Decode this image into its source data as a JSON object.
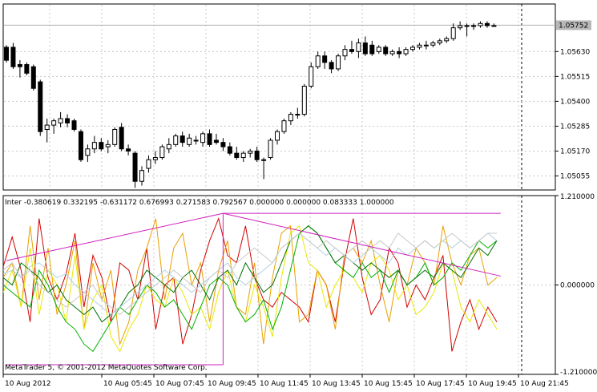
{
  "chart_data": [
    {
      "type": "candlestick",
      "price_ylim": [
        1.0499,
        1.0585
      ],
      "y_ticks": [
        "1.05630",
        "1.05515",
        "1.05400",
        "1.05285",
        "1.05170",
        "1.05055"
      ],
      "current_price_label": "1.05752",
      "colors": {
        "bull": "#ffffff",
        "bear": "#000000",
        "outline": "#000000",
        "grid": "#c0c0c0",
        "price_line": "#c0c0c0"
      },
      "candles": [
        {
          "o": 1.0565,
          "h": 1.0566,
          "l": 1.0558,
          "c": 1.0559
        },
        {
          "o": 1.0565,
          "h": 1.0567,
          "l": 1.0555,
          "c": 1.0556
        },
        {
          "o": 1.0557,
          "h": 1.0559,
          "l": 1.0551,
          "c": 1.0556
        },
        {
          "o": 1.0557,
          "h": 1.0558,
          "l": 1.0552,
          "c": 1.0553
        },
        {
          "o": 1.0556,
          "h": 1.0557,
          "l": 1.0545,
          "c": 1.0546
        },
        {
          "o": 1.0549,
          "h": 1.055,
          "l": 1.0524,
          "c": 1.0526
        },
        {
          "o": 1.0527,
          "h": 1.0532,
          "l": 1.0521,
          "c": 1.0529
        },
        {
          "o": 1.0529,
          "h": 1.0532,
          "l": 1.0525,
          "c": 1.0531
        },
        {
          "o": 1.053,
          "h": 1.0535,
          "l": 1.0528,
          "c": 1.0532
        },
        {
          "o": 1.0532,
          "h": 1.0534,
          "l": 1.0528,
          "c": 1.053
        },
        {
          "o": 1.0531,
          "h": 1.0532,
          "l": 1.0526,
          "c": 1.0527
        },
        {
          "o": 1.0526,
          "h": 1.0527,
          "l": 1.0512,
          "c": 1.0513
        },
        {
          "o": 1.0515,
          "h": 1.052,
          "l": 1.0512,
          "c": 1.0518
        },
        {
          "o": 1.0518,
          "h": 1.0524,
          "l": 1.0516,
          "c": 1.0521
        },
        {
          "o": 1.0521,
          "h": 1.0523,
          "l": 1.0517,
          "c": 1.0518
        },
        {
          "o": 1.0519,
          "h": 1.0522,
          "l": 1.0516,
          "c": 1.052
        },
        {
          "o": 1.052,
          "h": 1.0528,
          "l": 1.0519,
          "c": 1.0527
        },
        {
          "o": 1.0528,
          "h": 1.053,
          "l": 1.0517,
          "c": 1.0518
        },
        {
          "o": 1.0518,
          "h": 1.052,
          "l": 1.0515,
          "c": 1.0517
        },
        {
          "o": 1.0516,
          "h": 1.0517,
          "l": 1.05,
          "c": 1.0503
        },
        {
          "o": 1.0503,
          "h": 1.051,
          "l": 1.0501,
          "c": 1.0508
        },
        {
          "o": 1.0509,
          "h": 1.0515,
          "l": 1.0507,
          "c": 1.0513
        },
        {
          "o": 1.0513,
          "h": 1.0517,
          "l": 1.0511,
          "c": 1.0514
        },
        {
          "o": 1.0514,
          "h": 1.052,
          "l": 1.0513,
          "c": 1.0519
        },
        {
          "o": 1.0518,
          "h": 1.0523,
          "l": 1.0516,
          "c": 1.052
        },
        {
          "o": 1.052,
          "h": 1.0525,
          "l": 1.0519,
          "c": 1.0524
        },
        {
          "o": 1.0524,
          "h": 1.0526,
          "l": 1.0519,
          "c": 1.0521
        },
        {
          "o": 1.052,
          "h": 1.0525,
          "l": 1.0519,
          "c": 1.0523
        },
        {
          "o": 1.0522,
          "h": 1.0524,
          "l": 1.052,
          "c": 1.0522
        },
        {
          "o": 1.0521,
          "h": 1.0526,
          "l": 1.0519,
          "c": 1.0525
        },
        {
          "o": 1.0525,
          "h": 1.0527,
          "l": 1.0519,
          "c": 1.052
        },
        {
          "o": 1.0522,
          "h": 1.0525,
          "l": 1.052,
          "c": 1.0521
        },
        {
          "o": 1.0521,
          "h": 1.0523,
          "l": 1.0517,
          "c": 1.0519
        },
        {
          "o": 1.0519,
          "h": 1.0521,
          "l": 1.0515,
          "c": 1.0516
        },
        {
          "o": 1.0516,
          "h": 1.0519,
          "l": 1.0513,
          "c": 1.0514
        },
        {
          "o": 1.0514,
          "h": 1.0517,
          "l": 1.0512,
          "c": 1.0516
        },
        {
          "o": 1.0516,
          "h": 1.0518,
          "l": 1.0514,
          "c": 1.0517
        },
        {
          "o": 1.0517,
          "h": 1.0519,
          "l": 1.0512,
          "c": 1.0513
        },
        {
          "o": 1.0513,
          "h": 1.0514,
          "l": 1.0504,
          "c": 1.0513
        },
        {
          "o": 1.0514,
          "h": 1.0523,
          "l": 1.0513,
          "c": 1.0522
        },
        {
          "o": 1.0522,
          "h": 1.0527,
          "l": 1.052,
          "c": 1.0526
        },
        {
          "o": 1.0526,
          "h": 1.0532,
          "l": 1.0525,
          "c": 1.0531
        },
        {
          "o": 1.0531,
          "h": 1.0535,
          "l": 1.0529,
          "c": 1.0534
        },
        {
          "o": 1.0534,
          "h": 1.0537,
          "l": 1.0532,
          "c": 1.0534
        },
        {
          "o": 1.0534,
          "h": 1.0548,
          "l": 1.0533,
          "c": 1.0547
        },
        {
          "o": 1.0547,
          "h": 1.0558,
          "l": 1.0546,
          "c": 1.0556
        },
        {
          "o": 1.0556,
          "h": 1.0563,
          "l": 1.0555,
          "c": 1.0561
        },
        {
          "o": 1.0561,
          "h": 1.0563,
          "l": 1.0555,
          "c": 1.0558
        },
        {
          "o": 1.0558,
          "h": 1.0559,
          "l": 1.0553,
          "c": 1.0555
        },
        {
          "o": 1.0555,
          "h": 1.0562,
          "l": 1.0554,
          "c": 1.0561
        },
        {
          "o": 1.0561,
          "h": 1.0566,
          "l": 1.0559,
          "c": 1.0564
        },
        {
          "o": 1.0564,
          "h": 1.0568,
          "l": 1.0562,
          "c": 1.0563
        },
        {
          "o": 1.0563,
          "h": 1.0569,
          "l": 1.056,
          "c": 1.0567
        },
        {
          "o": 1.0567,
          "h": 1.057,
          "l": 1.0561,
          "c": 1.0562
        },
        {
          "o": 1.0566,
          "h": 1.0568,
          "l": 1.0561,
          "c": 1.0562
        },
        {
          "o": 1.0563,
          "h": 1.0566,
          "l": 1.0562,
          "c": 1.0565
        },
        {
          "o": 1.0565,
          "h": 1.0566,
          "l": 1.0561,
          "c": 1.0562
        },
        {
          "o": 1.0562,
          "h": 1.0564,
          "l": 1.0561,
          "c": 1.0563
        },
        {
          "o": 1.0563,
          "h": 1.0565,
          "l": 1.056,
          "c": 1.0562
        },
        {
          "o": 1.0562,
          "h": 1.0565,
          "l": 1.0561,
          "c": 1.0564
        },
        {
          "o": 1.0564,
          "h": 1.0566,
          "l": 1.0563,
          "c": 1.0565
        },
        {
          "o": 1.0565,
          "h": 1.0567,
          "l": 1.0564,
          "c": 1.0566
        },
        {
          "o": 1.0566,
          "h": 1.0568,
          "l": 1.0564,
          "c": 1.0566
        },
        {
          "o": 1.0566,
          "h": 1.0568,
          "l": 1.0565,
          "c": 1.0567
        },
        {
          "o": 1.0567,
          "h": 1.0569,
          "l": 1.0566,
          "c": 1.0568
        },
        {
          "o": 1.0568,
          "h": 1.057,
          "l": 1.0567,
          "c": 1.0569
        },
        {
          "o": 1.0569,
          "h": 1.0576,
          "l": 1.0568,
          "c": 1.0574
        },
        {
          "o": 1.0574,
          "h": 1.0577,
          "l": 1.0573,
          "c": 1.0575
        },
        {
          "o": 1.0575,
          "h": 1.0576,
          "l": 1.057,
          "c": 1.0575
        },
        {
          "o": 1.0575,
          "h": 1.0576,
          "l": 1.0573,
          "c": 1.0575
        },
        {
          "o": 1.0575,
          "h": 1.0577,
          "l": 1.0574,
          "c": 1.0576
        },
        {
          "o": 1.0576,
          "h": 1.0577,
          "l": 1.0574,
          "c": 1.0575
        },
        {
          "o": 1.0575,
          "h": 1.0576,
          "l": 1.0575,
          "c": 1.0575
        }
      ]
    },
    {
      "type": "line",
      "indicator_label": "Inter -0.380619 0.332195 -0.631172 0.676993 0.271583 0.792567 0.000000 0.000000 0.083333 1.000000",
      "ylim": [
        -1.21,
        1.21
      ],
      "y_ticks": [
        "1.210000",
        "0.000000",
        "-1.210000"
      ],
      "series": [
        {
          "color": "#d40000",
          "values": [
            0.25,
            0.65,
            0.2,
            -0.5,
            0.9,
            0.1,
            -0.2,
            0.15,
            0.7,
            -0.3,
            0.4,
            0.1,
            -0.5,
            0.3,
            0.2,
            -0.2,
            0.5,
            -0.6,
            0.0,
            0.1,
            -0.8,
            -0.4,
            0.2,
            0.6,
            0.9,
            0.4,
            0.3,
            0.8,
            0.1,
            -0.2,
            -0.3,
            -0.1,
            -0.2,
            -0.3,
            -0.5,
            0.2,
            0.0,
            -0.5,
            0.3,
            0.9,
            0.1,
            -0.4,
            -0.2,
            0.5,
            0.3,
            -0.3,
            0.0,
            -0.2,
            0.1,
            0.4,
            -0.9,
            -0.5,
            -0.2,
            -0.6,
            -0.3,
            -0.5
          ]
        },
        {
          "color": "#e8a000",
          "values": [
            0.1,
            0.3,
            -0.3,
            0.8,
            -0.2,
            0.5,
            -0.4,
            0.0,
            0.6,
            -0.6,
            0.3,
            -0.2,
            0.2,
            -0.8,
            -0.5,
            0.2,
            0.5,
            0.9,
            -0.2,
            0.5,
            0.7,
            0.0,
            0.3,
            -0.5,
            0.2,
            0.6,
            -0.3,
            -0.4,
            0.3,
            -0.8,
            0.1,
            0.7,
            0.8,
            -0.5,
            -0.4,
            0.2,
            0.0,
            -0.6,
            0.4,
            0.5,
            0.3,
            0.6,
            0.0,
            -0.5,
            0.2,
            0.0,
            0.5,
            0.3,
            0.0,
            0.8,
            0.3,
            0.0,
            0.4,
            0.5,
            0.0,
            0.1
          ]
        },
        {
          "color": "#e8e800",
          "values": [
            -0.1,
            0.2,
            -0.3,
            0.5,
            -0.4,
            0.2,
            0.0,
            -0.5,
            0.4,
            -0.6,
            -0.2,
            0.0,
            -0.7,
            -0.9,
            -0.6,
            -0.4,
            0.0,
            -0.2,
            -0.3,
            0.1,
            -0.1,
            -0.4,
            -0.3,
            -0.6,
            -0.1,
            0.2,
            -0.3,
            -0.5,
            0.0,
            -0.3,
            -0.7,
            0.1,
            0.7,
            0.8,
            0.3,
            0.2,
            -0.3,
            0.0,
            0.2,
            0.1,
            -0.1,
            0.3,
            0.4,
            0.2,
            -0.2,
            0.0,
            -0.4,
            -0.3,
            -0.1,
            0.3,
            0.2,
            -0.3,
            -0.5,
            -0.2,
            -0.4,
            -0.6
          ]
        },
        {
          "color": "#00b000",
          "values": [
            0.0,
            -0.1,
            -0.2,
            -0.3,
            0.2,
            0.0,
            -0.3,
            -0.5,
            -0.6,
            -0.8,
            -0.9,
            -0.7,
            -0.5,
            -0.3,
            -0.4,
            -0.2,
            0.0,
            -0.1,
            -0.3,
            -0.2,
            -0.4,
            -0.6,
            -0.3,
            0.0,
            0.1,
            0.0,
            -0.3,
            -0.5,
            -0.4,
            -0.2,
            -0.6,
            -0.3,
            0.2,
            0.7,
            0.8,
            0.7,
            0.5,
            0.3,
            0.2,
            0.1,
            0.3,
            0.1,
            0.2,
            -0.1,
            0.2,
            0.0,
            0.1,
            0.3,
            0.0,
            0.1,
            0.3,
            0.2,
            0.4,
            0.6,
            0.5,
            0.6
          ]
        },
        {
          "color": "#007000",
          "values": [
            0.1,
            0.0,
            0.3,
            0.2,
            0.1,
            -0.1,
            0.0,
            -0.2,
            -0.3,
            -0.4,
            -0.3,
            -0.5,
            -0.4,
            -0.3,
            -0.1,
            0.0,
            0.2,
            0.1,
            0.0,
            -0.1,
            0.1,
            0.2,
            0.0,
            -0.2,
            0.1,
            0.2,
            0.0,
            0.3,
            0.1,
            -0.1,
            0.0,
            0.3,
            0.6,
            0.7,
            0.8,
            0.7,
            0.5,
            0.3,
            0.4,
            0.3,
            0.2,
            0.3,
            0.2,
            0.1,
            0.2,
            0.0,
            0.1,
            0.2,
            0.1,
            0.3,
            0.2,
            0.1,
            0.3,
            0.5,
            0.4,
            0.6
          ]
        },
        {
          "color": "#b0d0e0",
          "values": [
            0.15,
            0.2,
            0.1,
            0.25,
            0.3,
            0.2,
            0.1,
            0.15,
            0.0,
            -0.1,
            -0.2,
            -0.3,
            -0.4,
            -0.3,
            -0.2,
            -0.1,
            0.0,
            0.1,
            0.2,
            0.1,
            0.0,
            -0.1,
            0.0,
            0.1,
            0.2,
            0.3,
            0.1,
            0.0,
            0.1,
            0.2,
            0.3,
            0.5,
            0.6,
            0.7,
            0.6,
            0.5,
            0.4,
            0.5,
            0.4,
            0.3,
            0.4,
            0.5,
            0.4,
            0.3,
            0.5,
            0.4,
            0.5,
            0.6,
            0.5,
            0.6,
            0.5,
            0.6,
            0.5,
            0.6,
            0.7,
            0.6
          ]
        },
        {
          "color": "#c8c8c8",
          "values": [
            0.2,
            0.3,
            0.1,
            0.2,
            0.0,
            -0.1,
            -0.2,
            -0.3,
            -0.2,
            -0.1,
            0.0,
            -0.2,
            -0.3,
            -0.4,
            -0.3,
            -0.2,
            -0.1,
            0.0,
            0.1,
            0.2,
            0.1,
            0.0,
            -0.1,
            0.1,
            0.2,
            0.1,
            0.3,
            0.4,
            0.5,
            0.4,
            0.3,
            0.5,
            0.6,
            0.7,
            0.6,
            0.5,
            0.6,
            0.5,
            0.4,
            0.5,
            0.6,
            0.5,
            0.6,
            0.5,
            0.7,
            0.6,
            0.5,
            0.6,
            0.5,
            0.6,
            0.7,
            0.6,
            0.5,
            0.6,
            0.7,
            0.7
          ]
        }
      ],
      "pink_lines": [
        {
          "from": [
            0,
            0.33
          ],
          "to": [
            32,
            0.97
          ]
        },
        {
          "from": [
            32,
            0.97
          ],
          "to": [
            73,
            0.97
          ]
        },
        {
          "from": [
            32,
            0.97
          ],
          "to": [
            73,
            0.12
          ]
        },
        {
          "from": [
            32,
            0.97
          ],
          "to": [
            32,
            -1.08
          ]
        },
        {
          "from": [
            0,
            -1.08
          ],
          "to": [
            32,
            -1.08
          ]
        }
      ],
      "pink_color": "#d020c0"
    }
  ],
  "time_axis": {
    "labels": [
      "10 Aug 2012",
      "10 Aug 05:45",
      "10 Aug 07:45",
      "10 Aug 09:45",
      "10 Aug 11:45",
      "10 Aug 13:45",
      "10 Aug 15:45",
      "10 Aug 17:45",
      "10 Aug 19:45",
      "10 Aug 21:45"
    ]
  },
  "copyright": "MetaTrader 5, © 2001-2012 MetaQuotes Software Corp."
}
